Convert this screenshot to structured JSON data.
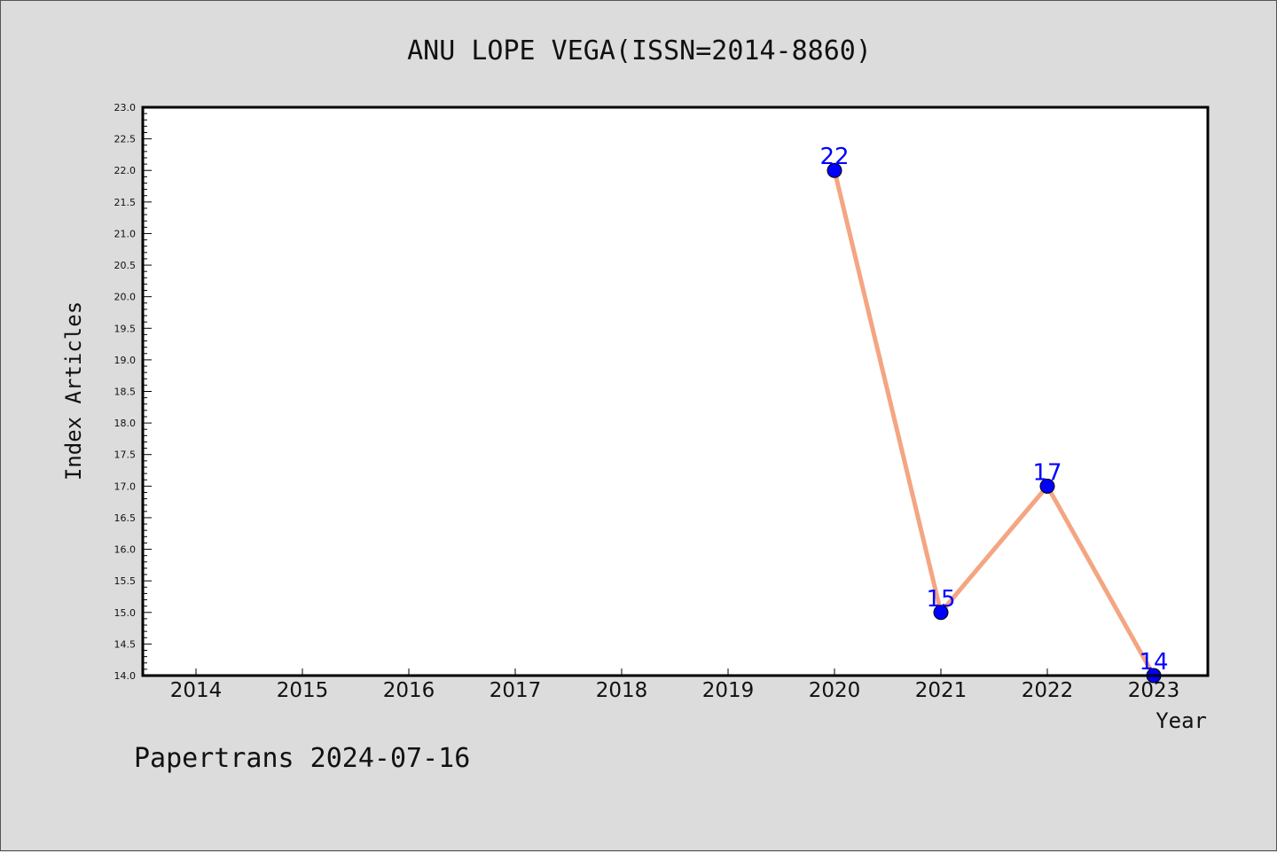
{
  "chart_data": {
    "type": "line",
    "title": "ANU LOPE VEGA(ISSN=2014-8860)",
    "xlabel": "Year",
    "ylabel": "Index Articles",
    "categories": [
      "2014",
      "2015",
      "2016",
      "2017",
      "2018",
      "2019",
      "2020",
      "2021",
      "2022",
      "2023"
    ],
    "x": [
      2020,
      2021,
      2022,
      2023
    ],
    "values": [
      22,
      15,
      17,
      14
    ],
    "data_labels": [
      "22",
      "15",
      "17",
      "14"
    ],
    "ylim": [
      14.0,
      23.0
    ],
    "yticks": [
      "14.0",
      "14.5",
      "15.0",
      "15.5",
      "16.0",
      "16.5",
      "17.0",
      "17.5",
      "18.0",
      "18.5",
      "19.0",
      "19.5",
      "20.0",
      "20.5",
      "21.0",
      "21.5",
      "22.0",
      "22.5",
      "23.0"
    ],
    "grid": false,
    "line_color": "#f4a582",
    "marker_color": "#0000ff",
    "label_color": "#0000ff"
  },
  "footer": "Papertrans 2024-07-16"
}
